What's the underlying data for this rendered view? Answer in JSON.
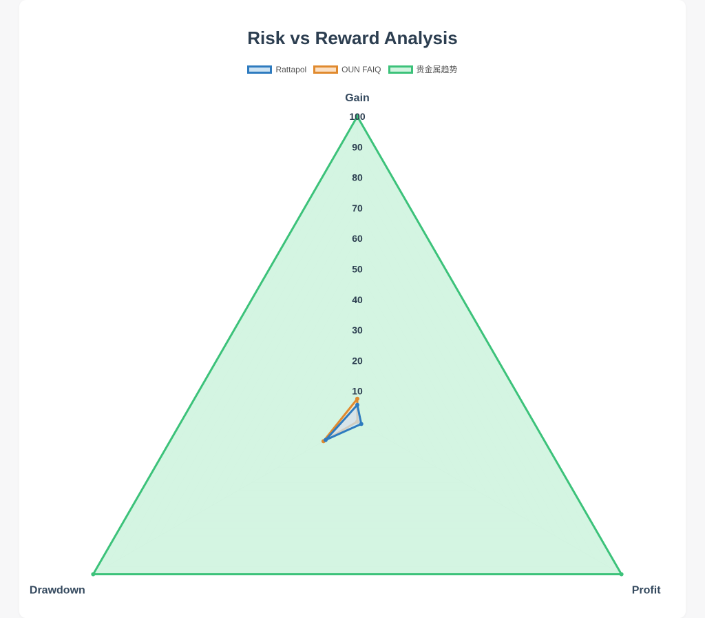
{
  "chart_data": {
    "type": "radar",
    "title": "Risk vs Reward Analysis",
    "axes": [
      "Gain",
      "Profit",
      "Drawdown"
    ],
    "r_range": [
      0,
      100
    ],
    "ticks": [
      10,
      20,
      30,
      40,
      50,
      60,
      70,
      80,
      90,
      100
    ],
    "grid": true,
    "legend_position": "top",
    "series": [
      {
        "name": "Rattapol",
        "color": "#2e7bbf",
        "fill": "#cde3f3",
        "values": [
          5.5,
          1.5,
          12.0
        ]
      },
      {
        "name": "OUN FAIQ",
        "color": "#e08a2e",
        "fill": "#fbe0c4",
        "values": [
          7.5,
          0.0,
          12.8
        ]
      },
      {
        "name": "贵金属趋势",
        "color": "#3cc27a",
        "fill": "#d2f4e0",
        "values": [
          100,
          100,
          100
        ]
      }
    ]
  }
}
